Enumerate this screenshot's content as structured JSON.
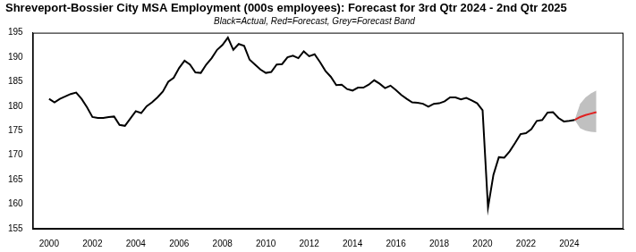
{
  "chart_data": {
    "type": "line",
    "title": "Shreveport-Bossier City MSA Employment (000s employees): Forecast for 3rd Qtr 2024 - 2nd Qtr 2025",
    "subtitle": "Black=Actual, Red=Forecast, Grey=Forecast Band",
    "x": [
      2000,
      2000.25,
      2000.5,
      2000.75,
      2001,
      2001.25,
      2001.5,
      2001.75,
      2002,
      2002.25,
      2002.5,
      2002.75,
      2003,
      2003.25,
      2003.5,
      2003.75,
      2004,
      2004.25,
      2004.5,
      2004.75,
      2005,
      2005.25,
      2005.5,
      2005.75,
      2006,
      2006.25,
      2006.5,
      2006.75,
      2007,
      2007.25,
      2007.5,
      2007.75,
      2008,
      2008.25,
      2008.5,
      2008.75,
      2009,
      2009.25,
      2009.5,
      2009.75,
      2010,
      2010.25,
      2010.5,
      2010.75,
      2011,
      2011.25,
      2011.5,
      2011.75,
      2012,
      2012.25,
      2012.5,
      2012.75,
      2013,
      2013.25,
      2013.5,
      2013.75,
      2014,
      2014.25,
      2014.5,
      2014.75,
      2015,
      2015.25,
      2015.5,
      2015.75,
      2016,
      2016.25,
      2016.5,
      2016.75,
      2017,
      2017.25,
      2017.5,
      2017.75,
      2018,
      2018.25,
      2018.5,
      2018.75,
      2019,
      2019.25,
      2019.5,
      2019.75,
      2020,
      2020.25,
      2020.5,
      2020.75,
      2021,
      2021.25,
      2021.5,
      2021.75,
      2022,
      2022.25,
      2022.5,
      2022.75,
      2023,
      2023.25,
      2023.5,
      2023.75,
      2024,
      2024.25,
      2024.5,
      2024.75,
      2025,
      2025.25
    ],
    "series": [
      {
        "name": "Forecast Band",
        "type": "area",
        "color": "#c0c0c0",
        "lower": [
          null,
          null,
          null,
          null,
          null,
          null,
          null,
          null,
          null,
          null,
          null,
          null,
          null,
          null,
          null,
          null,
          null,
          null,
          null,
          null,
          null,
          null,
          null,
          null,
          null,
          null,
          null,
          null,
          null,
          null,
          null,
          null,
          null,
          null,
          null,
          null,
          null,
          null,
          null,
          null,
          null,
          null,
          null,
          null,
          null,
          null,
          null,
          null,
          null,
          null,
          null,
          null,
          null,
          null,
          null,
          null,
          null,
          null,
          null,
          null,
          null,
          null,
          null,
          null,
          null,
          null,
          null,
          null,
          null,
          null,
          null,
          null,
          null,
          null,
          null,
          null,
          null,
          null,
          null,
          null,
          null,
          null,
          null,
          null,
          null,
          null,
          null,
          null,
          null,
          null,
          null,
          null,
          null,
          null,
          null,
          null,
          null,
          177.2,
          175.5,
          175.0,
          174.8,
          174.7
        ],
        "upper": [
          null,
          null,
          null,
          null,
          null,
          null,
          null,
          null,
          null,
          null,
          null,
          null,
          null,
          null,
          null,
          null,
          null,
          null,
          null,
          null,
          null,
          null,
          null,
          null,
          null,
          null,
          null,
          null,
          null,
          null,
          null,
          null,
          null,
          null,
          null,
          null,
          null,
          null,
          null,
          null,
          null,
          null,
          null,
          null,
          null,
          null,
          null,
          null,
          null,
          null,
          null,
          null,
          null,
          null,
          null,
          null,
          null,
          null,
          null,
          null,
          null,
          null,
          null,
          null,
          null,
          null,
          null,
          null,
          null,
          null,
          null,
          null,
          null,
          null,
          null,
          null,
          null,
          null,
          null,
          null,
          null,
          null,
          null,
          null,
          null,
          null,
          null,
          null,
          null,
          null,
          null,
          null,
          null,
          null,
          null,
          null,
          null,
          177.2,
          180.5,
          181.8,
          182.6,
          183.2
        ]
      },
      {
        "name": "Actual",
        "type": "line",
        "color": "#000000",
        "values": [
          181.5,
          180.8,
          181.5,
          182.0,
          182.5,
          182.8,
          181.5,
          179.8,
          177.8,
          177.6,
          177.6,
          177.8,
          177.9,
          176.2,
          176.0,
          177.5,
          179.0,
          178.6,
          180.0,
          180.8,
          181.8,
          183.0,
          185.0,
          185.8,
          187.8,
          189.3,
          188.5,
          186.9,
          186.8,
          188.5,
          189.8,
          191.5,
          192.5,
          194.0,
          191.5,
          192.7,
          192.3,
          189.5,
          188.5,
          187.5,
          186.8,
          187.0,
          188.5,
          188.6,
          190.0,
          190.3,
          189.8,
          191.2,
          190.2,
          190.6,
          189.0,
          187.2,
          186.0,
          184.3,
          184.4,
          183.5,
          183.2,
          183.8,
          183.8,
          184.4,
          185.3,
          184.6,
          183.7,
          184.2,
          183.3,
          182.3,
          181.5,
          180.8,
          180.7,
          180.5,
          179.9,
          180.5,
          180.6,
          181.0,
          181.8,
          181.8,
          181.4,
          181.7,
          181.2,
          180.6,
          179.2,
          159.3,
          166.0,
          169.6,
          169.5,
          170.8,
          172.5,
          174.3,
          174.5,
          175.3,
          177.0,
          177.2,
          178.7,
          178.8,
          177.6,
          176.9,
          177.0,
          177.2,
          null,
          null,
          null,
          null
        ]
      },
      {
        "name": "Forecast",
        "type": "line",
        "color": "#e02020",
        "values": [
          null,
          null,
          null,
          null,
          null,
          null,
          null,
          null,
          null,
          null,
          null,
          null,
          null,
          null,
          null,
          null,
          null,
          null,
          null,
          null,
          null,
          null,
          null,
          null,
          null,
          null,
          null,
          null,
          null,
          null,
          null,
          null,
          null,
          null,
          null,
          null,
          null,
          null,
          null,
          null,
          null,
          null,
          null,
          null,
          null,
          null,
          null,
          null,
          null,
          null,
          null,
          null,
          null,
          null,
          null,
          null,
          null,
          null,
          null,
          null,
          null,
          null,
          null,
          null,
          null,
          null,
          null,
          null,
          null,
          null,
          null,
          null,
          null,
          null,
          null,
          null,
          null,
          null,
          null,
          null,
          null,
          null,
          null,
          null,
          null,
          null,
          null,
          null,
          null,
          null,
          null,
          null,
          null,
          null,
          null,
          null,
          null,
          177.2,
          177.8,
          178.2,
          178.5,
          178.8
        ]
      }
    ],
    "xlim": [
      1999.25,
      2026.5
    ],
    "xticks": [
      2000,
      2002,
      2004,
      2006,
      2008,
      2010,
      2012,
      2014,
      2016,
      2018,
      2020,
      2022,
      2024
    ],
    "ylim": [
      155,
      195
    ],
    "yticks": [
      155,
      160,
      165,
      170,
      175,
      180,
      185,
      190,
      195
    ],
    "grid": false
  }
}
